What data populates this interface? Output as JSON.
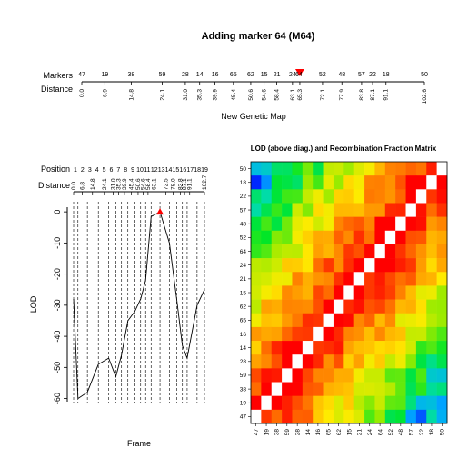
{
  "chart_data": [
    {
      "type": "line",
      "title": "Adding marker 64 (M64)",
      "row_labels": [
        "Markers",
        "Distance"
      ],
      "xlabel": "New Genetic Map",
      "markers": [
        {
          "name": "47",
          "distance": 0.0
        },
        {
          "name": "19",
          "distance": 6.9
        },
        {
          "name": "38",
          "distance": 14.8
        },
        {
          "name": "59",
          "distance": 24.1
        },
        {
          "name": "28",
          "distance": 31.0
        },
        {
          "name": "14",
          "distance": 35.3
        },
        {
          "name": "16",
          "distance": 39.9
        },
        {
          "name": "65",
          "distance": 45.4
        },
        {
          "name": "62",
          "distance": 50.6
        },
        {
          "name": "15",
          "distance": 54.6
        },
        {
          "name": "21",
          "distance": 58.4
        },
        {
          "name": "24",
          "distance": 63.1
        },
        {
          "name": "64",
          "distance": 65.3,
          "added": true
        },
        {
          "name": "52",
          "distance": 72.1
        },
        {
          "name": "48",
          "distance": 77.9
        },
        {
          "name": "57",
          "distance": 83.8
        },
        {
          "name": "22",
          "distance": 87.1
        },
        {
          "name": "18",
          "distance": 91.1
        },
        {
          "name": "50",
          "distance": 102.6
        }
      ],
      "xlim": [
        0,
        102.6
      ],
      "highlight_color": "#ff0000"
    },
    {
      "type": "line",
      "xlabel": "Frame",
      "ylabel": "LOD",
      "row_labels": [
        "Position",
        "Distance"
      ],
      "positions": [
        "1",
        "2",
        "3",
        "4",
        "5",
        "6",
        "7",
        "8",
        "9",
        "10",
        "11",
        "12",
        "13",
        "14",
        "15",
        "16",
        "17",
        "18",
        "19"
      ],
      "distances": [
        "0.0",
        "6.8",
        "14.8",
        "24.1",
        "31.0",
        "35.3",
        "39.9",
        "45.4",
        "50.6",
        "54.6",
        "58.4",
        "63.1",
        "72.5",
        "78.0",
        "83.8",
        "87.1",
        "91.1",
        "102.7"
      ],
      "y_ticks": [
        0,
        -10,
        -20,
        -30,
        -40,
        -50,
        -60
      ],
      "ylim": [
        -61,
        1.5
      ],
      "series": [
        {
          "x": [
            0,
            3.4,
            10.8,
            19.4,
            27.5,
            33.1,
            37.6,
            42.6,
            48.0,
            52.6,
            56.5,
            60.8,
            67.8,
            75.2,
            80.9,
            85.4,
            89.1,
            96.9,
            102.7
          ],
          "y": [
            -28,
            -60,
            -58,
            -49,
            -47,
            -53,
            -46,
            -35,
            -32,
            -28,
            -22,
            -1.5,
            0,
            -10,
            -28,
            -43,
            -47,
            -30,
            -25
          ]
        }
      ],
      "peak_x": 67.8,
      "marker_color": "#ff0000"
    },
    {
      "type": "heatmap",
      "title": "LOD (above diag.) and Recombination Fraction Matrix",
      "labels": [
        "47",
        "19",
        "38",
        "59",
        "28",
        "14",
        "16",
        "65",
        "62",
        "15",
        "21",
        "24",
        "64",
        "52",
        "48",
        "57",
        "22",
        "18",
        "50"
      ]
    }
  ]
}
